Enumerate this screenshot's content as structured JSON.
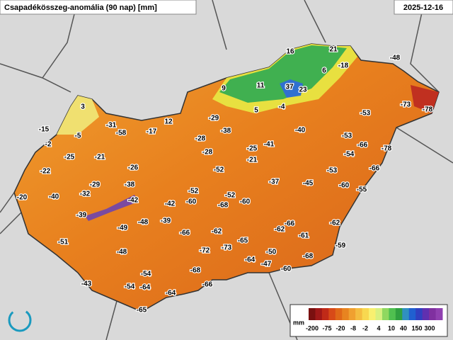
{
  "title": "Csapadékösszeg-anomália (90 nap) [mm]",
  "date": "2025-12-16",
  "legend": {
    "unit": "mm",
    "ticks": [
      -200,
      -75,
      -20,
      -8,
      -2,
      4,
      10,
      40,
      150,
      300
    ]
  },
  "stations": [
    16,
    21,
    -48,
    -18,
    6,
    9,
    11,
    37,
    23,
    5,
    -4,
    -73,
    -78,
    3,
    12,
    -29,
    -53,
    -31,
    -15,
    -58,
    -17,
    -38,
    -40,
    -5,
    -28,
    -53,
    -2,
    -25,
    -21,
    -41,
    -25,
    -66,
    -78,
    -28,
    -54,
    -21,
    -22,
    -26,
    -52,
    -53,
    -66,
    -20,
    -40,
    -32,
    -29,
    -38,
    -37,
    -45,
    -60,
    -55,
    -52,
    -52,
    -60,
    -42,
    -42,
    -60,
    -68,
    -39,
    -48,
    -39,
    -49,
    -66,
    -62,
    -62,
    -61,
    -66,
    -62,
    -51,
    -65,
    -73,
    -72,
    -48,
    -59,
    -50,
    -68,
    -64,
    -47,
    -54,
    -68,
    -60,
    -43,
    -54,
    -64,
    -66,
    -64,
    -65
  ]
}
